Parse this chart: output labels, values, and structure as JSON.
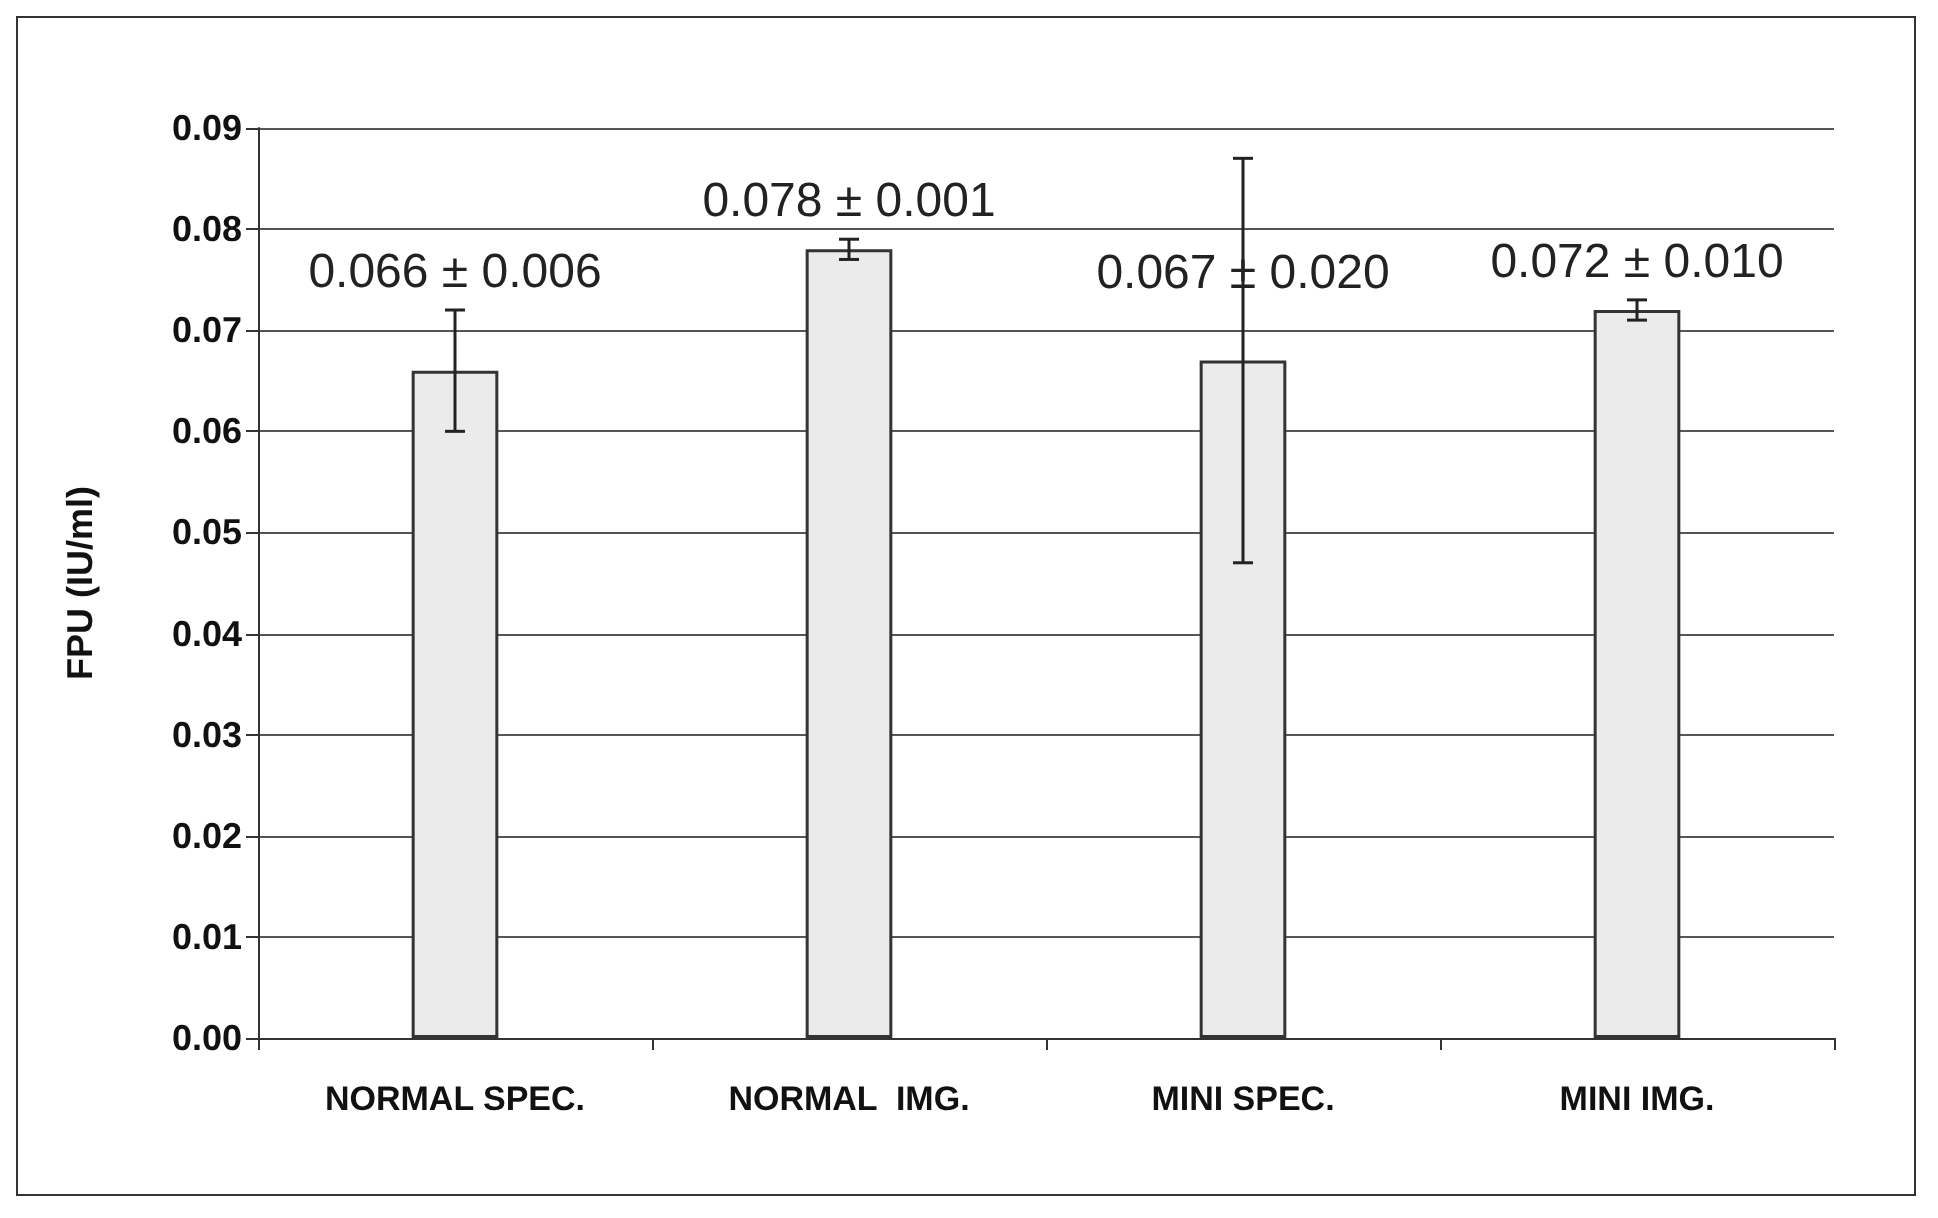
{
  "chart_data": {
    "type": "bar",
    "ylabel": "FPU (IU/ml)",
    "categories": [
      "NORMAL SPEC.",
      "NORMAL  IMG.",
      "MINI SPEC.",
      "MINI IMG."
    ],
    "values": [
      0.066,
      0.078,
      0.067,
      0.072
    ],
    "errors": [
      0.006,
      0.001,
      0.02,
      0.001
    ],
    "value_labels": [
      "0.066 ± 0.006",
      "0.078 ± 0.001",
      "0.067 ± 0.020",
      "0.072 ± 0.010"
    ],
    "color": "#ebebeb",
    "ylim": [
      0,
      0.09
    ],
    "yticks": [
      {
        "value": 0,
        "label": "0.00"
      },
      0.01,
      0.02,
      0.03,
      0.04,
      0.05,
      0.06,
      0.07,
      0.08,
      0.09
    ],
    "grid": "y"
  }
}
